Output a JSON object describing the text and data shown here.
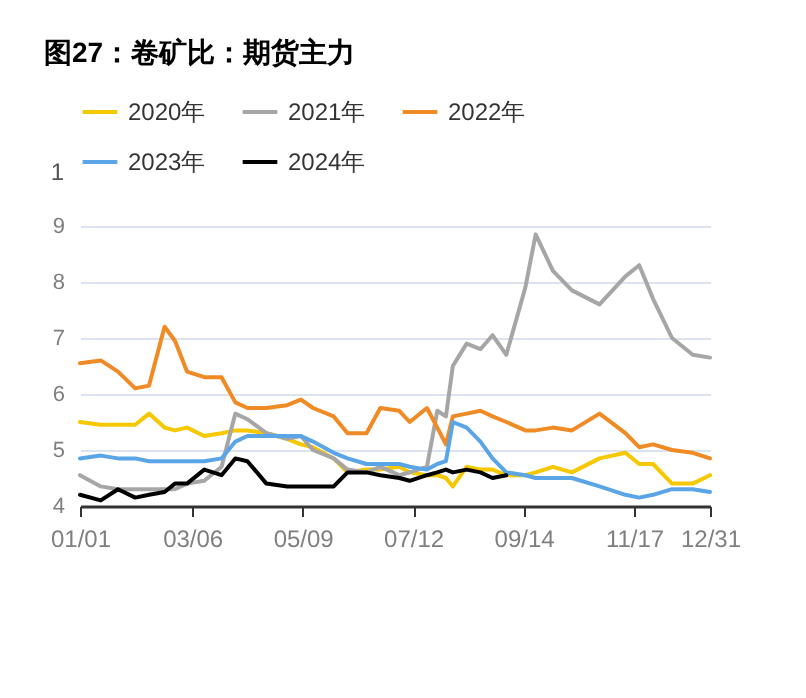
{
  "chart_data": {
    "type": "line",
    "title": "图27：卷矿比：期货主力",
    "x": [
      "--01-01",
      "--01-13",
      "--01-23",
      "--02-02",
      "--02-10",
      "--02-19",
      "--02-25",
      "--03-03",
      "--03-13",
      "--03-23",
      "--03-31",
      "--04-07",
      "--04-18",
      "--04-30",
      "--05-08",
      "--05-15",
      "--05-27",
      "--06-04",
      "--06-15",
      "--06-23",
      "--07-04",
      "--07-10",
      "--07-20",
      "--07-26",
      "--07-31",
      "--08-04",
      "--08-12",
      "--08-20",
      "--08-27",
      "--09-04",
      "--09-15",
      "--09-21",
      "--10-01",
      "--10-12",
      "--10-28",
      "--11-12",
      "--11-20",
      "--11-28",
      "--12-09",
      "--12-21",
      "--12-31"
    ],
    "series": [
      {
        "name": "2020年",
        "color": "#f5c800",
        "values": [
          5.5,
          5.45,
          5.45,
          5.45,
          5.65,
          5.4,
          5.35,
          5.4,
          5.25,
          5.3,
          5.35,
          5.35,
          5.3,
          5.2,
          5.1,
          5.05,
          4.85,
          4.6,
          4.65,
          4.65,
          4.7,
          4.6,
          4.55,
          4.55,
          4.5,
          4.35,
          4.7,
          4.65,
          4.65,
          4.55,
          4.55,
          4.6,
          4.7,
          4.6,
          4.85,
          4.95,
          4.75,
          4.75,
          4.4,
          4.4,
          4.55
        ]
      },
      {
        "name": "2021年",
        "color": "#a6a6a6",
        "values": [
          4.55,
          4.35,
          4.3,
          4.3,
          4.3,
          4.3,
          4.3,
          4.4,
          4.45,
          4.7,
          5.65,
          5.55,
          5.3,
          5.2,
          5.25,
          5.0,
          4.85,
          4.65,
          4.6,
          4.7,
          4.55,
          4.6,
          4.7,
          5.7,
          5.6,
          6.5,
          6.9,
          6.8,
          7.05,
          6.7,
          7.9,
          8.85,
          8.2,
          7.85,
          7.6,
          8.1,
          8.3,
          7.7,
          7.0,
          6.7,
          6.65
        ]
      },
      {
        "name": "2022年",
        "color": "#f08a24",
        "values": [
          6.55,
          6.6,
          6.4,
          6.1,
          6.15,
          7.2,
          6.95,
          6.4,
          6.3,
          6.3,
          5.85,
          5.75,
          5.75,
          5.8,
          5.9,
          5.75,
          5.6,
          5.3,
          5.3,
          5.75,
          5.7,
          5.5,
          5.75,
          5.4,
          5.1,
          5.6,
          5.65,
          5.7,
          5.6,
          5.5,
          5.35,
          5.35,
          5.4,
          5.35,
          5.65,
          5.3,
          5.05,
          5.1,
          5.0,
          4.95,
          4.85
        ]
      },
      {
        "name": "2023年",
        "color": "#5aa5e6",
        "values": [
          4.85,
          4.9,
          4.85,
          4.85,
          4.8,
          4.8,
          4.8,
          4.8,
          4.8,
          4.85,
          5.15,
          5.25,
          5.25,
          5.25,
          5.25,
          5.15,
          4.95,
          4.85,
          4.75,
          4.75,
          4.75,
          4.7,
          4.65,
          4.75,
          4.8,
          5.5,
          5.4,
          5.15,
          4.85,
          4.6,
          4.55,
          4.5,
          4.5,
          4.5,
          4.35,
          4.2,
          4.15,
          4.2,
          4.3,
          4.3,
          4.25
        ]
      },
      {
        "name": "2024年",
        "color": "#000000",
        "values": [
          4.2,
          4.1,
          4.3,
          4.15,
          4.2,
          4.25,
          4.4,
          4.4,
          4.65,
          4.55,
          4.85,
          4.8,
          4.4,
          4.35,
          4.35,
          4.35,
          4.35,
          4.6,
          4.6,
          4.55,
          4.5,
          4.45,
          4.55,
          4.6,
          4.65,
          4.6,
          4.65,
          4.6,
          4.5,
          4.55,
          null,
          null,
          null,
          null,
          null,
          null,
          null,
          null,
          null,
          null,
          null
        ]
      }
    ],
    "xlim": [
      "--01-01",
      "--12-31"
    ],
    "xticks": [
      {
        "value": "--01-01",
        "label": "01/01"
      },
      {
        "value": "--03-06",
        "label": "03/06"
      },
      {
        "value": "--05-09",
        "label": "05/09"
      },
      {
        "value": "--07-12",
        "label": "07/12"
      },
      {
        "value": "--09-14",
        "label": "09/14"
      },
      {
        "value": "--11-17",
        "label": "11/17"
      },
      {
        "value": "--12-31",
        "label": "12/31"
      }
    ],
    "ylim": [
      4,
      9
    ],
    "yticks": [
      4,
      5,
      6,
      7,
      8,
      9
    ],
    "annotations": [
      "1"
    ],
    "grid": "y",
    "legend": "top",
    "marker": "none",
    "line_style": "solid"
  }
}
